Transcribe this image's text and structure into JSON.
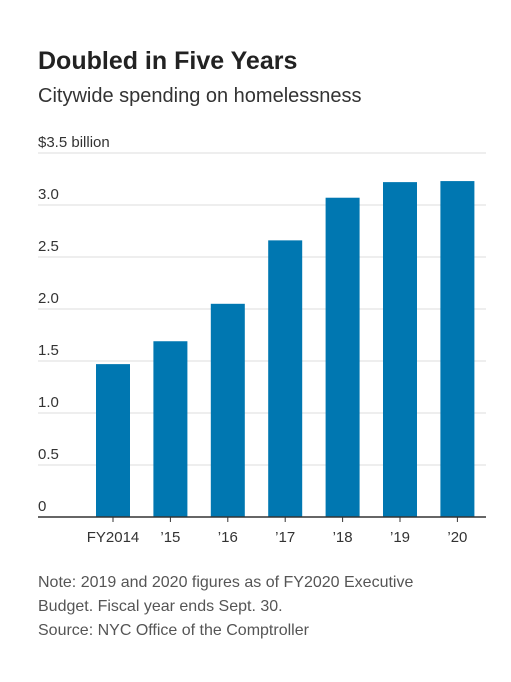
{
  "header": {
    "title": "Doubled in Five Years",
    "subtitle": "Citywide spending on homelessness"
  },
  "notes": {
    "line1": "Note: 2019 and 2020 figures as of FY2020 Executive",
    "line2": "Budget. Fiscal year ends Sept. 30.",
    "source": "Source: NYC Office of the Comptroller"
  },
  "colors": {
    "bar": "#0077b1",
    "grid": "#dcdcdc",
    "axis": "#333333",
    "text": "#222222"
  },
  "chart_data": {
    "type": "bar",
    "title": "Doubled in Five Years",
    "subtitle": "Citywide spending on homelessness",
    "unit": "billion",
    "categories": [
      "FY2014",
      "’15",
      "’16",
      "’17",
      "’18",
      "’19",
      "’20"
    ],
    "values": [
      1.47,
      1.69,
      2.05,
      2.66,
      3.07,
      3.22,
      3.23
    ],
    "ylim": [
      0,
      3.5
    ],
    "yticks": [
      0,
      0.5,
      1.0,
      1.5,
      2.0,
      2.5,
      3.0,
      3.5
    ],
    "ytick_labels": [
      "0",
      "0.5",
      "1.0",
      "1.5",
      "2.0",
      "2.5",
      "3.0",
      "$3.5 billion"
    ],
    "grid": true,
    "legend": "none"
  }
}
